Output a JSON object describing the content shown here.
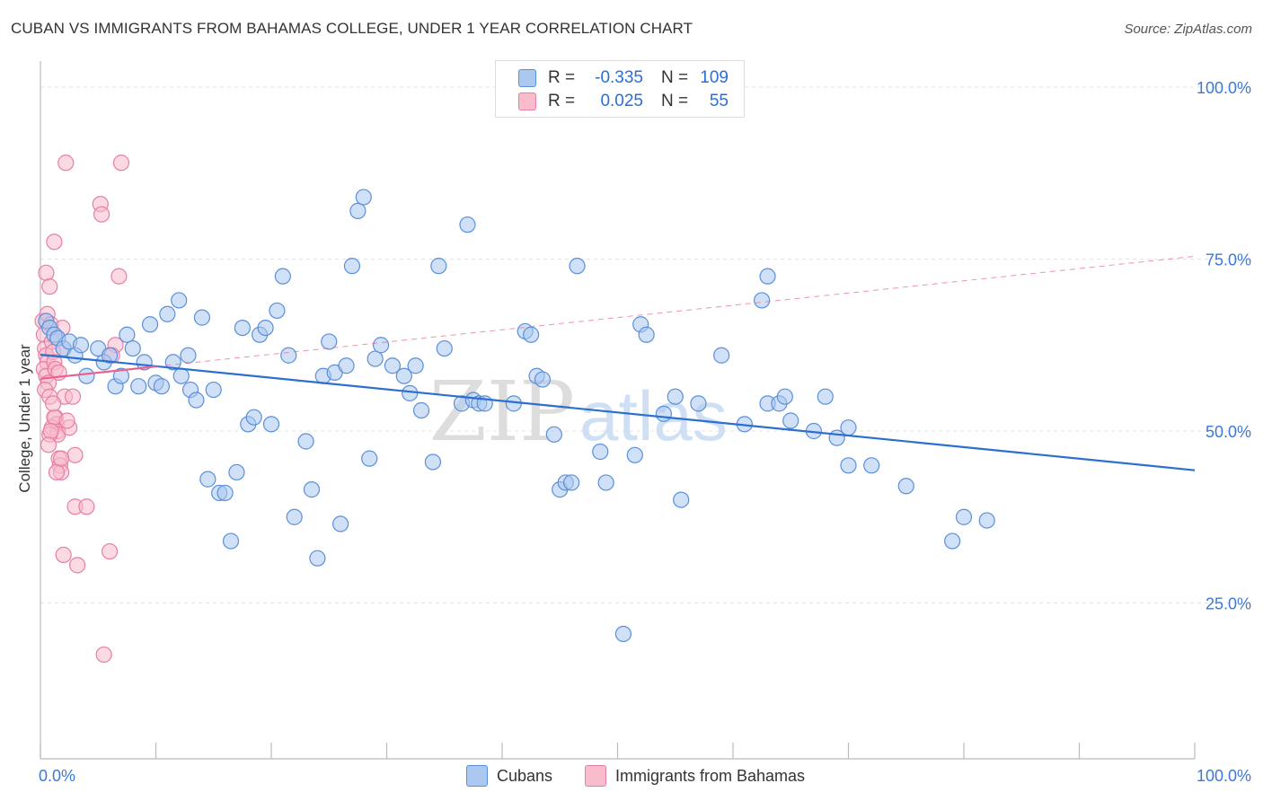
{
  "header": {
    "title": "CUBAN VS IMMIGRANTS FROM BAHAMAS COLLEGE, UNDER 1 YEAR CORRELATION CHART",
    "source": "Source: ZipAtlas.com"
  },
  "watermark": {
    "part1": "ZIP",
    "part2": "atlas"
  },
  "legend": {
    "rows": [
      {
        "r_label": "R =",
        "r_value": "-0.335",
        "n_label": "N =",
        "n_value": "109",
        "fill": "#aac8f0",
        "stroke": "#5b8fd9"
      },
      {
        "r_label": "R =",
        "r_value": "0.025",
        "n_label": "N =",
        "n_value": "55",
        "fill": "#f8bccd",
        "stroke": "#e87fa0"
      }
    ]
  },
  "bottom_legend": {
    "items": [
      {
        "label": "Cubans",
        "fill": "#aac8f0",
        "stroke": "#5b8fd9"
      },
      {
        "label": "Immigrants from Bahamas",
        "fill": "#f8bccd",
        "stroke": "#e87fa0"
      }
    ]
  },
  "colors": {
    "blue_line": "#2c6fd1",
    "pink_line": "#e8628e",
    "tick_label": "#3d78d8",
    "grid": "#e4e4e4"
  },
  "chart_data": {
    "type": "scatter",
    "title": "CUBAN VS IMMIGRANTS FROM BAHAMAS COLLEGE, UNDER 1 YEAR CORRELATION CHART",
    "xlabel": "",
    "ylabel": "College, Under 1 year",
    "xlim": [
      0,
      100
    ],
    "ylim": [
      0,
      100
    ],
    "x_tick_labels": [
      "0.0%",
      "100.0%"
    ],
    "y_ticks": [
      25,
      50,
      75,
      100
    ],
    "y_tick_labels": [
      "25.0%",
      "50.0%",
      "75.0%",
      "100.0%"
    ],
    "grid": true,
    "series": [
      {
        "name": "Cubans",
        "color": "#5b8fd9",
        "fill": "#aac8f0",
        "trend": {
          "x": [
            0,
            100
          ],
          "y": [
            61.1,
            44.3
          ],
          "style": "solid"
        },
        "points": [
          [
            0.5,
            66
          ],
          [
            0.8,
            65
          ],
          [
            1.2,
            64
          ],
          [
            1.5,
            63.5
          ],
          [
            2,
            62
          ],
          [
            2.5,
            63
          ],
          [
            3,
            61
          ],
          [
            3.5,
            62.5
          ],
          [
            4,
            58
          ],
          [
            5.5,
            60
          ],
          [
            5,
            62
          ],
          [
            6,
            61
          ],
          [
            6.5,
            56.5
          ],
          [
            7,
            58
          ],
          [
            7.5,
            64
          ],
          [
            8,
            62
          ],
          [
            8.5,
            56.5
          ],
          [
            9,
            60
          ],
          [
            9.5,
            65.5
          ],
          [
            10,
            57
          ],
          [
            10.5,
            56.5
          ],
          [
            11,
            67
          ],
          [
            11.5,
            60
          ],
          [
            12,
            69
          ],
          [
            12.2,
            58
          ],
          [
            12.8,
            61
          ],
          [
            13,
            56
          ],
          [
            13.5,
            54.5
          ],
          [
            14,
            66.5
          ],
          [
            14.5,
            43
          ],
          [
            15,
            56
          ],
          [
            15.5,
            41
          ],
          [
            16,
            41
          ],
          [
            16.5,
            34
          ],
          [
            17,
            44
          ],
          [
            17.5,
            65
          ],
          [
            18,
            51
          ],
          [
            18.5,
            52
          ],
          [
            19,
            64
          ],
          [
            19.5,
            65
          ],
          [
            20,
            51
          ],
          [
            20.5,
            67.5
          ],
          [
            21,
            72.5
          ],
          [
            21.5,
            61
          ],
          [
            22,
            37.5
          ],
          [
            23,
            48.5
          ],
          [
            23.5,
            41.5
          ],
          [
            24,
            31.5
          ],
          [
            24.5,
            58
          ],
          [
            25,
            63
          ],
          [
            25.5,
            58.5
          ],
          [
            26,
            36.5
          ],
          [
            26.5,
            59.5
          ],
          [
            27,
            74
          ],
          [
            27.5,
            82
          ],
          [
            28,
            84
          ],
          [
            28.5,
            46
          ],
          [
            29,
            60.5
          ],
          [
            29.5,
            62.5
          ],
          [
            30.5,
            59.5
          ],
          [
            31.5,
            58
          ],
          [
            32,
            55.5
          ],
          [
            32.5,
            59.5
          ],
          [
            33,
            53
          ],
          [
            34,
            45.5
          ],
          [
            34.5,
            74
          ],
          [
            35,
            62
          ],
          [
            36.5,
            54
          ],
          [
            37,
            80
          ],
          [
            37.5,
            54.5
          ],
          [
            38,
            54
          ],
          [
            38.5,
            54
          ],
          [
            41,
            54
          ],
          [
            42,
            64.5
          ],
          [
            42.5,
            64
          ],
          [
            43,
            58
          ],
          [
            43.5,
            57.5
          ],
          [
            44.5,
            49.5
          ],
          [
            45,
            41.5
          ],
          [
            45.5,
            42.5
          ],
          [
            46,
            42.5
          ],
          [
            46.5,
            74
          ],
          [
            48.5,
            47
          ],
          [
            49,
            42.5
          ],
          [
            50.5,
            20.5
          ],
          [
            51.5,
            46.5
          ],
          [
            52,
            65.5
          ],
          [
            52.5,
            64
          ],
          [
            54,
            52.5
          ],
          [
            55,
            55
          ],
          [
            55.5,
            40
          ],
          [
            57,
            54
          ],
          [
            59,
            61
          ],
          [
            61,
            51
          ],
          [
            62.5,
            69
          ],
          [
            63,
            72.5
          ],
          [
            63,
            54
          ],
          [
            64,
            54
          ],
          [
            64.5,
            55
          ],
          [
            65,
            51.5
          ],
          [
            67,
            50
          ],
          [
            68,
            55
          ],
          [
            69,
            49
          ],
          [
            70,
            50.5
          ],
          [
            70,
            45
          ],
          [
            72,
            45
          ],
          [
            75,
            42
          ],
          [
            79,
            34
          ],
          [
            80,
            37.5
          ],
          [
            82,
            37
          ]
        ]
      },
      {
        "name": "Immigrants from Bahamas",
        "color": "#e87fa0",
        "fill": "#f8bccd",
        "trend": {
          "x": [
            0,
            100
          ],
          "y": [
            57.6,
            75.4
          ],
          "style": "solid-then-dashed",
          "solid_until_x": 10
        },
        "points": [
          [
            0.2,
            66
          ],
          [
            0.3,
            64
          ],
          [
            0.4,
            62
          ],
          [
            0.5,
            61
          ],
          [
            0.6,
            60
          ],
          [
            0.3,
            59
          ],
          [
            0.5,
            58
          ],
          [
            0.7,
            57
          ],
          [
            0.4,
            56
          ],
          [
            0.8,
            55
          ],
          [
            0.6,
            67
          ],
          [
            0.9,
            65.5
          ],
          [
            1,
            63
          ],
          [
            1.1,
            61.5
          ],
          [
            1.2,
            60
          ],
          [
            1.3,
            52
          ],
          [
            1.4,
            51
          ],
          [
            1.5,
            50
          ],
          [
            1.6,
            46
          ],
          [
            1.7,
            45
          ],
          [
            1.8,
            44
          ],
          [
            1.9,
            65
          ],
          [
            2,
            62
          ],
          [
            2.1,
            55
          ],
          [
            0.5,
            73
          ],
          [
            0.8,
            71
          ],
          [
            1.2,
            77.5
          ],
          [
            2.2,
            89
          ],
          [
            5.2,
            83
          ],
          [
            5.3,
            81.5
          ],
          [
            7,
            89
          ],
          [
            6.8,
            72.5
          ],
          [
            1,
            50.5
          ],
          [
            1.5,
            49.5
          ],
          [
            2.5,
            50.5
          ],
          [
            0.8,
            49.5
          ],
          [
            1.2,
            52
          ],
          [
            2.8,
            55
          ],
          [
            3,
            46.5
          ],
          [
            3,
            39
          ],
          [
            4,
            39
          ],
          [
            2,
            32
          ],
          [
            3.2,
            30.5
          ],
          [
            6,
            32.5
          ],
          [
            5.5,
            17.5
          ],
          [
            1.4,
            44
          ],
          [
            1.8,
            46
          ],
          [
            6.5,
            62.5
          ],
          [
            6.2,
            61
          ],
          [
            2.3,
            51.5
          ],
          [
            0.9,
            50
          ],
          [
            1.1,
            54
          ],
          [
            1.3,
            59
          ],
          [
            1.6,
            58.5
          ],
          [
            0.7,
            48
          ]
        ]
      }
    ]
  }
}
